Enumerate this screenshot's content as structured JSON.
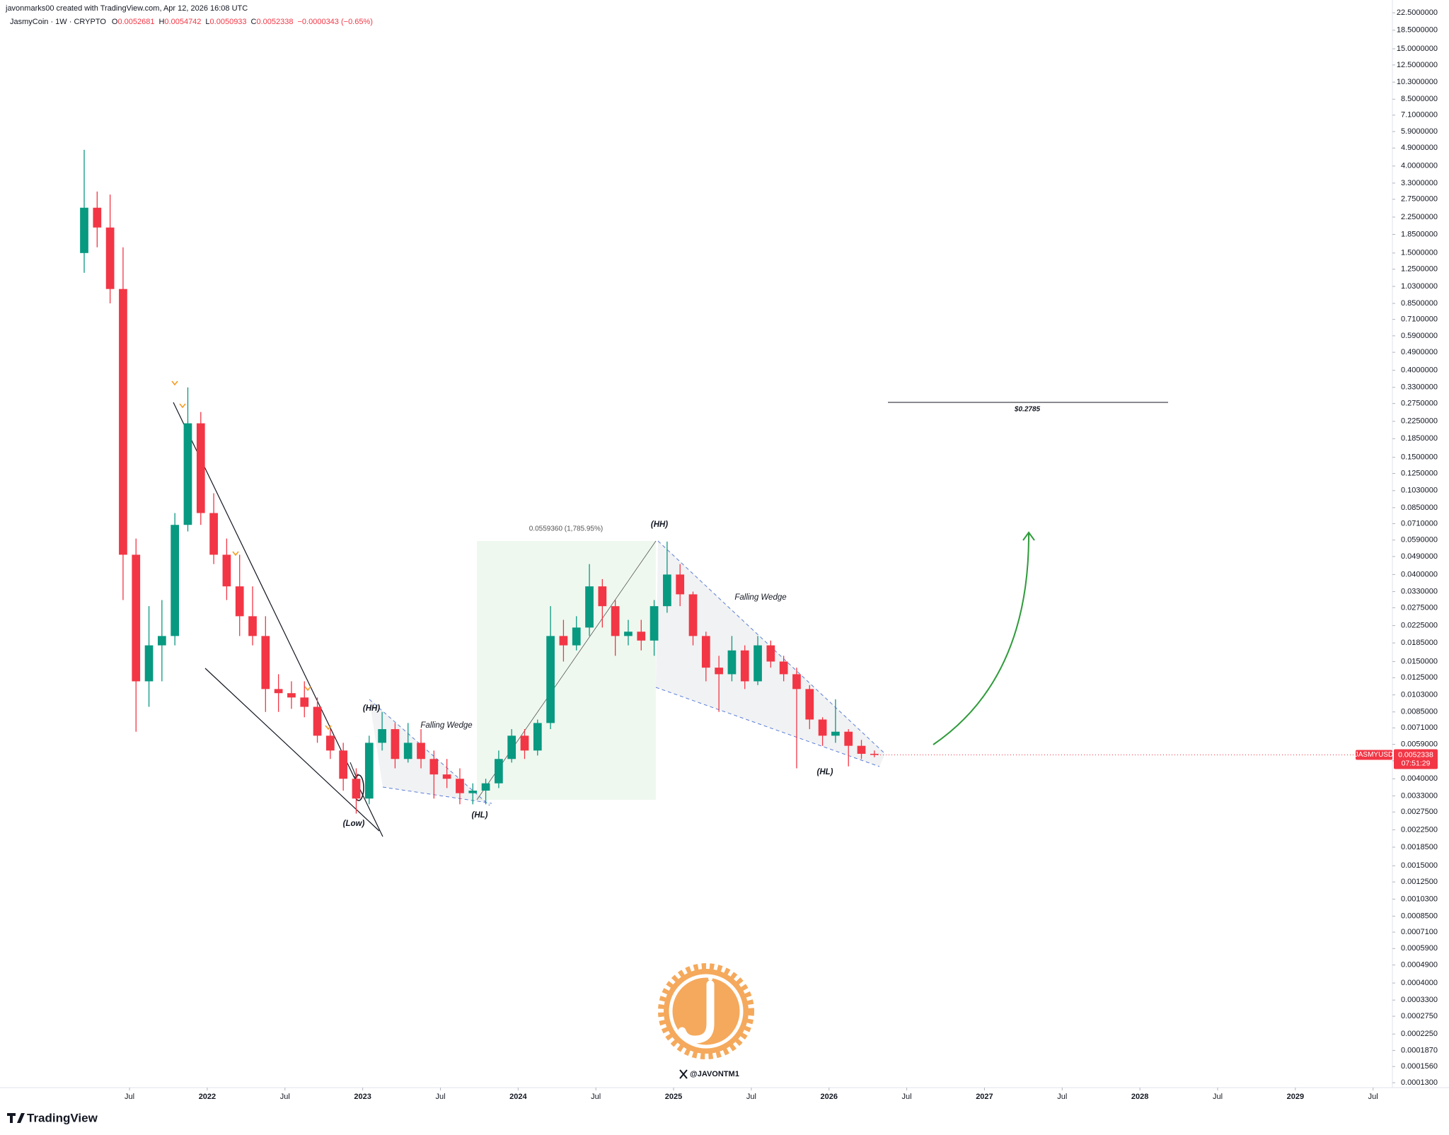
{
  "header": {
    "attribution": "javonmarks00 created with TradingView.com, Apr 12, 2026 16:08 UTC",
    "symbol": "JasmyCoin · 1W · CRYPTO",
    "ohlc": [
      {
        "key": "O",
        "value": "0.0052681"
      },
      {
        "key": "H",
        "value": "0.0054742"
      },
      {
        "key": "L",
        "value": "0.0050933"
      },
      {
        "key": "C",
        "value": "0.0052338"
      }
    ],
    "change": "−0.0000343 (−0.65%)"
  },
  "brand": "TradingView",
  "watermark_handle": "@JAVONTM1",
  "chart_data": {
    "type": "candlestick",
    "log_scale": true,
    "grid": false,
    "up_color": "#089981",
    "down_color": "#f23645",
    "x": [
      "2021-03",
      "2021-04",
      "2021-05",
      "2021-06",
      "2021-07",
      "2021-08",
      "2021-09",
      "2021-10",
      "2021-11",
      "2021-12",
      "2022-01",
      "2022-02",
      "2022-03",
      "2022-04",
      "2022-05",
      "2022-06",
      "2022-07",
      "2022-08",
      "2022-09",
      "2022-10",
      "2022-11",
      "2022-12",
      "2023-01",
      "2023-02",
      "2023-03",
      "2023-04",
      "2023-05",
      "2023-06",
      "2023-07",
      "2023-08",
      "2023-09",
      "2023-10",
      "2023-11",
      "2023-12",
      "2024-01",
      "2024-02",
      "2024-03",
      "2024-04",
      "2024-05",
      "2024-06",
      "2024-07",
      "2024-08",
      "2024-09",
      "2024-10",
      "2024-11",
      "2024-12",
      "2025-01",
      "2025-02",
      "2025-03",
      "2025-04",
      "2025-05",
      "2025-06",
      "2025-07",
      "2025-08",
      "2025-09",
      "2025-10",
      "2025-11",
      "2025-12",
      "2026-01",
      "2026-02",
      "2026-03",
      "2026-04"
    ],
    "open": [
      1.5,
      2.5,
      2.0,
      1.0,
      0.05,
      0.012,
      0.018,
      0.02,
      0.07,
      0.22,
      0.08,
      0.05,
      0.035,
      0.025,
      0.02,
      0.011,
      0.0105,
      0.01,
      0.009,
      0.0065,
      0.0055,
      0.004,
      0.0032,
      0.006,
      0.007,
      0.005,
      0.006,
      0.005,
      0.0042,
      0.004,
      0.0034,
      0.0035,
      0.0038,
      0.005,
      0.0065,
      0.0055,
      0.0075,
      0.02,
      0.018,
      0.022,
      0.035,
      0.028,
      0.02,
      0.021,
      0.019,
      0.028,
      0.04,
      0.032,
      0.02,
      0.014,
      0.013,
      0.017,
      0.012,
      0.018,
      0.015,
      0.013,
      0.011,
      0.0078,
      0.0065,
      0.0068,
      0.0058,
      0.0053
    ],
    "high": [
      4.8,
      3.0,
      2.9,
      1.6,
      0.06,
      0.028,
      0.03,
      0.08,
      0.33,
      0.25,
      0.1,
      0.06,
      0.05,
      0.035,
      0.025,
      0.013,
      0.012,
      0.012,
      0.01,
      0.007,
      0.006,
      0.0045,
      0.0065,
      0.0085,
      0.0075,
      0.0075,
      0.007,
      0.0055,
      0.005,
      0.0045,
      0.0038,
      0.004,
      0.0055,
      0.007,
      0.007,
      0.0078,
      0.028,
      0.024,
      0.025,
      0.045,
      0.038,
      0.03,
      0.024,
      0.024,
      0.03,
      0.058,
      0.045,
      0.033,
      0.021,
      0.016,
      0.02,
      0.018,
      0.02,
      0.019,
      0.016,
      0.014,
      0.0115,
      0.008,
      0.0098,
      0.007,
      0.0062,
      0.0055
    ],
    "low": [
      1.2,
      1.6,
      0.85,
      0.03,
      0.0068,
      0.009,
      0.012,
      0.018,
      0.065,
      0.07,
      0.045,
      0.03,
      0.02,
      0.018,
      0.0085,
      0.0085,
      0.0088,
      0.008,
      0.006,
      0.005,
      0.0035,
      0.0027,
      0.003,
      0.0055,
      0.0045,
      0.0048,
      0.0045,
      0.0032,
      0.0036,
      0.003,
      0.003,
      0.003,
      0.0036,
      0.0048,
      0.005,
      0.0052,
      0.007,
      0.015,
      0.017,
      0.02,
      0.022,
      0.016,
      0.018,
      0.017,
      0.016,
      0.026,
      0.028,
      0.018,
      0.012,
      0.0085,
      0.012,
      0.011,
      0.0115,
      0.014,
      0.012,
      0.0045,
      0.007,
      0.0058,
      0.006,
      0.0046,
      0.005,
      0.0051
    ],
    "close": [
      2.5,
      2.0,
      1.0,
      0.05,
      0.012,
      0.018,
      0.02,
      0.07,
      0.22,
      0.08,
      0.05,
      0.035,
      0.025,
      0.02,
      0.011,
      0.0105,
      0.01,
      0.009,
      0.0065,
      0.0055,
      0.004,
      0.0032,
      0.006,
      0.007,
      0.005,
      0.006,
      0.005,
      0.0042,
      0.004,
      0.0034,
      0.0035,
      0.0038,
      0.005,
      0.0065,
      0.0055,
      0.0075,
      0.02,
      0.018,
      0.022,
      0.035,
      0.028,
      0.02,
      0.021,
      0.019,
      0.028,
      0.04,
      0.032,
      0.02,
      0.014,
      0.013,
      0.017,
      0.012,
      0.018,
      0.015,
      0.013,
      0.011,
      0.0078,
      0.0065,
      0.0068,
      0.0058,
      0.0053,
      0.0052338
    ],
    "xlim": [
      "2020-09",
      "2029-08"
    ],
    "xticks": [
      {
        "value": "2021-07",
        "label": "Jul"
      },
      {
        "value": "2022-01",
        "label": "2022"
      },
      {
        "value": "2022-07",
        "label": "Jul"
      },
      {
        "value": "2023-01",
        "label": "2023"
      },
      {
        "value": "2023-07",
        "label": "Jul"
      },
      {
        "value": "2024-01",
        "label": "2024"
      },
      {
        "value": "2024-07",
        "label": "Jul"
      },
      {
        "value": "2025-01",
        "label": "2025"
      },
      {
        "value": "2025-07",
        "label": "Jul"
      },
      {
        "value": "2026-01",
        "label": "2026"
      },
      {
        "value": "2026-07",
        "label": "Jul"
      },
      {
        "value": "2027-01",
        "label": "2027"
      },
      {
        "value": "2027-07",
        "label": "Jul"
      },
      {
        "value": "2028-01",
        "label": "2028"
      },
      {
        "value": "2028-07",
        "label": "Jul"
      },
      {
        "value": "2029-01",
        "label": "2029"
      },
      {
        "value": "2029-07",
        "label": "Jul"
      }
    ],
    "ylim": [
      0.000123,
      26
    ],
    "yticks": [
      {
        "value": 22.5,
        "label": "22.5000000"
      },
      {
        "value": 18.5,
        "label": "18.5000000"
      },
      {
        "value": 15,
        "label": "15.0000000"
      },
      {
        "value": 12.5,
        "label": "12.5000000"
      },
      {
        "value": 10.3,
        "label": "10.3000000"
      },
      {
        "value": 8.5,
        "label": "8.5000000"
      },
      {
        "value": 7.1,
        "label": "7.1000000"
      },
      {
        "value": 5.9,
        "label": "5.9000000"
      },
      {
        "value": 4.9,
        "label": "4.9000000"
      },
      {
        "value": 4,
        "label": "4.0000000"
      },
      {
        "value": 3.3,
        "label": "3.3000000"
      },
      {
        "value": 2.75,
        "label": "2.7500000"
      },
      {
        "value": 2.25,
        "label": "2.2500000"
      },
      {
        "value": 1.85,
        "label": "1.8500000"
      },
      {
        "value": 1.5,
        "label": "1.5000000"
      },
      {
        "value": 1.25,
        "label": "1.2500000"
      },
      {
        "value": 1.03,
        "label": "1.0300000"
      },
      {
        "value": 0.85,
        "label": "0.8500000"
      },
      {
        "value": 0.71,
        "label": "0.7100000"
      },
      {
        "value": 0.59,
        "label": "0.5900000"
      },
      {
        "value": 0.49,
        "label": "0.4900000"
      },
      {
        "value": 0.4,
        "label": "0.4000000"
      },
      {
        "value": 0.33,
        "label": "0.3300000"
      },
      {
        "value": 0.275,
        "label": "0.2750000"
      },
      {
        "value": 0.225,
        "label": "0.2250000"
      },
      {
        "value": 0.185,
        "label": "0.1850000"
      },
      {
        "value": 0.15,
        "label": "0.1500000"
      },
      {
        "value": 0.125,
        "label": "0.1250000"
      },
      {
        "value": 0.103,
        "label": "0.1030000"
      },
      {
        "value": 0.085,
        "label": "0.0850000"
      },
      {
        "value": 0.071,
        "label": "0.0710000"
      },
      {
        "value": 0.059,
        "label": "0.0590000"
      },
      {
        "value": 0.049,
        "label": "0.0490000"
      },
      {
        "value": 0.04,
        "label": "0.0400000"
      },
      {
        "value": 0.033,
        "label": "0.0330000"
      },
      {
        "value": 0.0275,
        "label": "0.0275000"
      },
      {
        "value": 0.0225,
        "label": "0.0225000"
      },
      {
        "value": 0.0185,
        "label": "0.0185000"
      },
      {
        "value": 0.015,
        "label": "0.0150000"
      },
      {
        "value": 0.0125,
        "label": "0.0125000"
      },
      {
        "value": 0.0103,
        "label": "0.0103000"
      },
      {
        "value": 0.0085,
        "label": "0.0085000"
      },
      {
        "value": 0.0071,
        "label": "0.0071000"
      },
      {
        "value": 0.0059,
        "label": "0.0059000"
      },
      {
        "value": 0.0049,
        "label": "0.0049000"
      },
      {
        "value": 0.004,
        "label": "0.0040000"
      },
      {
        "value": 0.0033,
        "label": "0.0033000"
      },
      {
        "value": 0.00275,
        "label": "0.0027500"
      },
      {
        "value": 0.00225,
        "label": "0.0022500"
      },
      {
        "value": 0.00185,
        "label": "0.0018500"
      },
      {
        "value": 0.0015,
        "label": "0.0015000"
      },
      {
        "value": 0.00125,
        "label": "0.0012500"
      },
      {
        "value": 0.00103,
        "label": "0.0010300"
      },
      {
        "value": 0.00085,
        "label": "0.0008500"
      },
      {
        "value": 0.00071,
        "label": "0.0007100"
      },
      {
        "value": 0.00059,
        "label": "0.0005900"
      },
      {
        "value": 0.00049,
        "label": "0.0004900"
      },
      {
        "value": 0.0004,
        "label": "0.0004000"
      },
      {
        "value": 0.00033,
        "label": "0.0003300"
      },
      {
        "value": 0.000275,
        "label": "0.0002750"
      },
      {
        "value": 0.000225,
        "label": "0.0002250"
      },
      {
        "value": 0.000187,
        "label": "0.0001870"
      },
      {
        "value": 0.000156,
        "label": "0.0001560"
      },
      {
        "value": 0.00013,
        "label": "0.0001300"
      }
    ],
    "target": {
      "value": 0.2785,
      "label": "$0.2785"
    },
    "last_price": 0.0052338,
    "symbol_tag": "JASMYUSD",
    "countdown": "07:51:29",
    "annotations": [
      "(HH)",
      "Falling Wedge",
      "(HL)",
      "(Low)",
      "0.0559360 (1,785.95%)",
      "(HH)",
      "Falling Wedge",
      "(HL)"
    ]
  }
}
